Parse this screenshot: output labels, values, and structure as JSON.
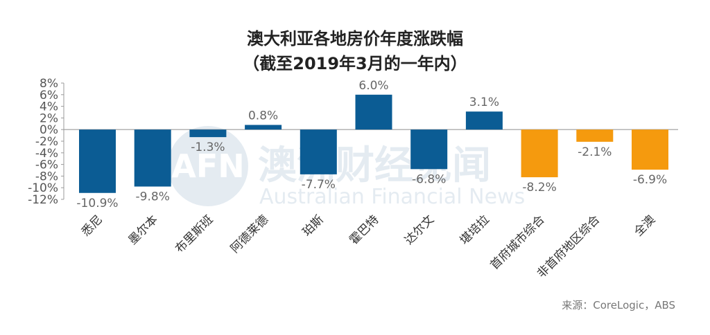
{
  "chart_data": {
    "type": "bar",
    "title": "澳大利亚各地房价年度涨跌幅",
    "subtitle": "（截至2019年3月的一年内）",
    "categories": [
      "悉尼",
      "墨尔本",
      "布里斯班",
      "阿德莱德",
      "珀斯",
      "霍巴特",
      "达尔文",
      "堪培拉",
      "首府城市综合",
      "非首府地区综合",
      "全澳"
    ],
    "values": [
      -10.9,
      -9.8,
      -1.3,
      0.8,
      -7.7,
      6.0,
      -6.8,
      3.1,
      -8.2,
      -2.1,
      -6.9
    ],
    "value_labels": [
      "-10.9%",
      "-9.8%",
      "-1.3%",
      "0.8%",
      "-7.7%",
      "6.0%",
      "-6.8%",
      "3.1%",
      "-8.2%",
      "-2.1%",
      "-6.9%"
    ],
    "colors": [
      "#0b5c94",
      "#0b5c94",
      "#0b5c94",
      "#0b5c94",
      "#0b5c94",
      "#0b5c94",
      "#0b5c94",
      "#0b5c94",
      "#f59a0e",
      "#f59a0e",
      "#f59a0e"
    ],
    "yticks": [
      "8%",
      "6%",
      "4%",
      "2%",
      "0%",
      "-2%",
      "-4%",
      "-6%",
      "-8%",
      "-10%",
      "-12%"
    ],
    "ytick_values": [
      8,
      6,
      4,
      2,
      0,
      -2,
      -4,
      -6,
      -8,
      -10,
      -12
    ],
    "ylim": [
      -12,
      8
    ],
    "xlabel": "",
    "ylabel": "",
    "grid": false
  },
  "watermark": {
    "logo_text": "AFN",
    "cn_text": "澳洲财经见闻",
    "en_text": "Australian Financial News"
  },
  "source": "来源：CoreLogic，ABS"
}
